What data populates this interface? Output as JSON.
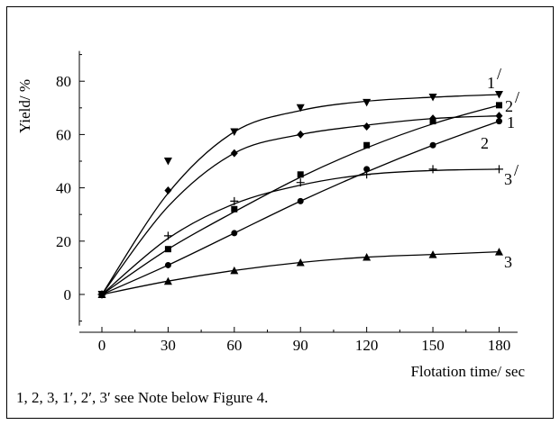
{
  "chart_data": {
    "type": "line",
    "title": "",
    "xlabel": "Flotation time/ sec",
    "ylabel": "Yield/ %",
    "xlim": [
      -10,
      190
    ],
    "ylim": [
      -10,
      90
    ],
    "xticks": [
      "0",
      "30",
      "60",
      "90",
      "120",
      "150",
      "180"
    ],
    "yticks": [
      "0",
      "20",
      "40",
      "60",
      "80"
    ],
    "x": [
      0,
      30,
      60,
      90,
      120,
      150,
      180
    ],
    "grid": false,
    "legend": "none",
    "series": [
      {
        "name": "1/",
        "marker": "triangle-down",
        "values": [
          0,
          50,
          61,
          70,
          72,
          74,
          75
        ],
        "fit": [
          0,
          38,
          61,
          69,
          72.5,
          74,
          75
        ]
      },
      {
        "name": "1",
        "marker": "diamond",
        "values": [
          0,
          39,
          53,
          60,
          63,
          66,
          67
        ],
        "fit": [
          0,
          33,
          53,
          60,
          63.5,
          66,
          67
        ]
      },
      {
        "name": "2/",
        "marker": "square",
        "values": [
          0,
          17,
          32,
          45,
          56,
          65,
          71
        ],
        "fit": [
          0,
          17,
          31,
          44,
          55,
          64,
          71
        ]
      },
      {
        "name": "2",
        "marker": "circle",
        "values": [
          0,
          11,
          23,
          35,
          47,
          56,
          65
        ],
        "fit": [
          0,
          11,
          23,
          35,
          46,
          56,
          65
        ]
      },
      {
        "name": "3/",
        "marker": "plus",
        "values": [
          0,
          22,
          35,
          42,
          45,
          47,
          47
        ],
        "fit": [
          0,
          21,
          34,
          41,
          45,
          46.5,
          47
        ]
      },
      {
        "name": "3",
        "marker": "triangle-up",
        "values": [
          0,
          5,
          9,
          12,
          14,
          15,
          16
        ],
        "fit": [
          0,
          5,
          9,
          12,
          14,
          15,
          16
        ]
      }
    ],
    "curve_labels": [
      {
        "text": "1",
        "sup": "/",
        "series": "1/"
      },
      {
        "text": "2",
        "sup": "/",
        "series": "2/"
      },
      {
        "text": "1",
        "sup": "",
        "series": "1"
      },
      {
        "text": "2",
        "sup": "",
        "series": "2"
      },
      {
        "text": "3",
        "sup": "/",
        "series": "3/"
      },
      {
        "text": "3",
        "sup": "",
        "series": "3"
      }
    ]
  },
  "caption": "1, 2, 3, 1′, 2′, 3′  see Note below Figure 4."
}
